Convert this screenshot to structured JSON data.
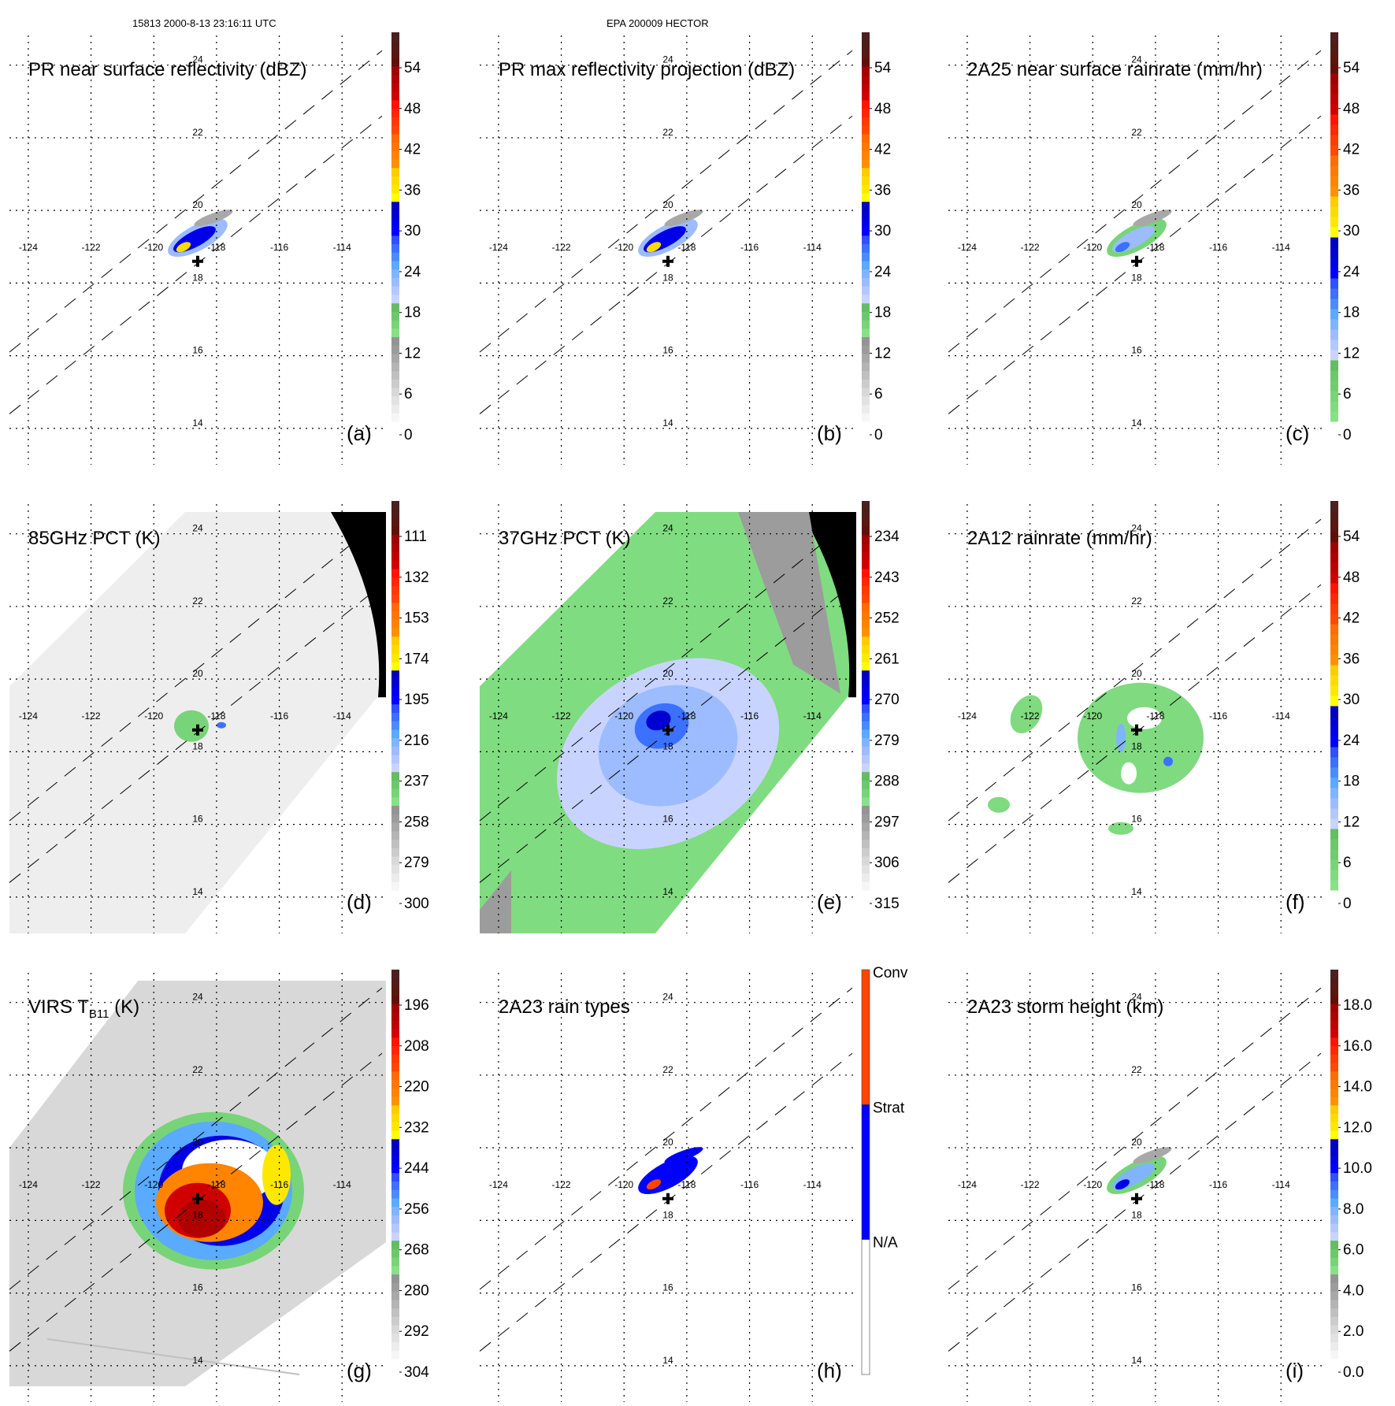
{
  "header": {
    "left": "15813 2000-8-13 23:16:11 UTC",
    "center": "EPA 200009 HECTOR"
  },
  "palette": {
    "standard": [
      "#f6f6f6",
      "#ececec",
      "#e2e2e2",
      "#d8d8d8",
      "#cccccc",
      "#c0c0c0",
      "#b4b4b4",
      "#a8a8a8",
      "#9c9c9c",
      "#949494",
      "#88e088",
      "#78d478",
      "#6cc86c",
      "#64bc64",
      "#c8d4ff",
      "#b4c8ff",
      "#9cbcff",
      "#80b4ff",
      "#5aaaff",
      "#4a8cff",
      "#3c70ff",
      "#3050ff",
      "#0000ff",
      "#0000e8",
      "#0000d0",
      "#0000c0",
      "#ffff00",
      "#ffe800",
      "#ffdc00",
      "#ffcc00",
      "#ff9000",
      "#ff8400",
      "#ff7800",
      "#ff6c00",
      "#ff4800",
      "#ff3c00",
      "#ff2800",
      "#ff1400",
      "#d00000",
      "#c00000",
      "#b00000",
      "#a00000",
      "#601008",
      "#581810",
      "#501c18",
      "#4a2020"
    ],
    "rain": [
      "#88e088",
      "#80da80",
      "#78d478",
      "#70cc70",
      "#6cc86c",
      "#64bc64",
      "#c8d4ff",
      "#b4c8ff",
      "#9cbcff",
      "#80b4ff",
      "#5aaaff",
      "#4a8cff",
      "#3c70ff",
      "#3050ff",
      "#0000ff",
      "#0000e8",
      "#0000d0",
      "#0000c0",
      "#ffff00",
      "#ffe800",
      "#ffdc00",
      "#ffcc00",
      "#ff9000",
      "#ff8400",
      "#ff7800",
      "#ff6c00",
      "#ff4800",
      "#ff3c00",
      "#ff2800",
      "#ff1400",
      "#d00000",
      "#c00000",
      "#b00000",
      "#a00000",
      "#601008",
      "#581810",
      "#501c18",
      "#4a2020"
    ],
    "raintype": [
      "#ffffff",
      "#0000ff",
      "#ff4500"
    ]
  },
  "map": {
    "lon_ticks": [
      "-124",
      "-122",
      "-120",
      "-118",
      "-116",
      "-114"
    ],
    "lat_ticks": [
      "24",
      "22",
      "20",
      "18",
      "16",
      "14"
    ],
    "lon_range": [
      -124.6,
      -112.6
    ],
    "lat_range": [
      13,
      24.6
    ],
    "storm_center": {
      "lon": -118.6,
      "lat": 18.6
    }
  },
  "chart_data": [
    {
      "id": "a",
      "type": "heatmap",
      "title": "PR near surface reflectivity (dBZ)",
      "panel_label": "(a)",
      "colorbar": {
        "palette": "standard",
        "ticks": [
          "54",
          "48",
          "42",
          "36",
          "30",
          "24",
          "18",
          "12",
          "6",
          "0"
        ],
        "range": [
          0,
          60
        ]
      }
    },
    {
      "id": "b",
      "type": "heatmap",
      "title": "PR max reflectivity projection (dBZ)",
      "panel_label": "(b)",
      "colorbar": {
        "palette": "standard",
        "ticks": [
          "54",
          "48",
          "42",
          "36",
          "30",
          "24",
          "18",
          "12",
          "6",
          "0"
        ],
        "range": [
          0,
          60
        ]
      }
    },
    {
      "id": "c",
      "type": "heatmap",
      "title": "2A25 near surface rainrate (mm/hr)",
      "panel_label": "(c)",
      "colorbar": {
        "palette": "rain",
        "ticks": [
          "54",
          "48",
          "42",
          "36",
          "30",
          "24",
          "18",
          "12",
          "6",
          "0"
        ],
        "range": [
          0,
          60
        ]
      }
    },
    {
      "id": "d",
      "type": "heatmap",
      "title": "85GHz PCT (K)",
      "panel_label": "(d)",
      "colorbar": {
        "palette": "standard",
        "ticks": [
          "111",
          "132",
          "153",
          "174",
          "195",
          "216",
          "237",
          "258",
          "279",
          "300"
        ],
        "range": [
          300,
          90
        ]
      }
    },
    {
      "id": "e",
      "type": "heatmap",
      "title": "37GHz PCT (K)",
      "panel_label": "(e)",
      "colorbar": {
        "palette": "standard",
        "ticks": [
          "234",
          "243",
          "252",
          "261",
          "270",
          "279",
          "288",
          "297",
          "306",
          "315"
        ],
        "range": [
          315,
          225
        ]
      }
    },
    {
      "id": "f",
      "type": "heatmap",
      "title": "2A12 rainrate (mm/hr)",
      "panel_label": "(f)",
      "colorbar": {
        "palette": "rain",
        "ticks": [
          "54",
          "48",
          "42",
          "36",
          "30",
          "24",
          "18",
          "12",
          "6",
          "0"
        ],
        "range": [
          0,
          60
        ]
      }
    },
    {
      "id": "g",
      "type": "heatmap",
      "title_main": "VIRS T",
      "title_sub": "B11",
      "title_unit": " (K)",
      "panel_label": "(g)",
      "colorbar": {
        "palette": "standard",
        "ticks": [
          "196",
          "208",
          "220",
          "232",
          "244",
          "256",
          "268",
          "280",
          "292",
          "304"
        ],
        "range": [
          304,
          184
        ]
      }
    },
    {
      "id": "h",
      "type": "heatmap",
      "title": "2A23 rain types",
      "panel_label": "(h)",
      "colorbar": {
        "palette": "raintype",
        "ticks": [
          "Conv",
          "Strat",
          "N/A"
        ],
        "categories": [
          "N/A",
          "Strat",
          "Conv"
        ]
      }
    },
    {
      "id": "i",
      "type": "heatmap",
      "title": "2A23 storm height (km)",
      "panel_label": "(i)",
      "colorbar": {
        "palette": "standard",
        "ticks": [
          "18.0",
          "16.0",
          "14.0",
          "12.0",
          "10.0",
          "8.0",
          "6.0",
          "4.0",
          "2.0",
          "0.0"
        ],
        "range": [
          0,
          20
        ]
      }
    }
  ]
}
